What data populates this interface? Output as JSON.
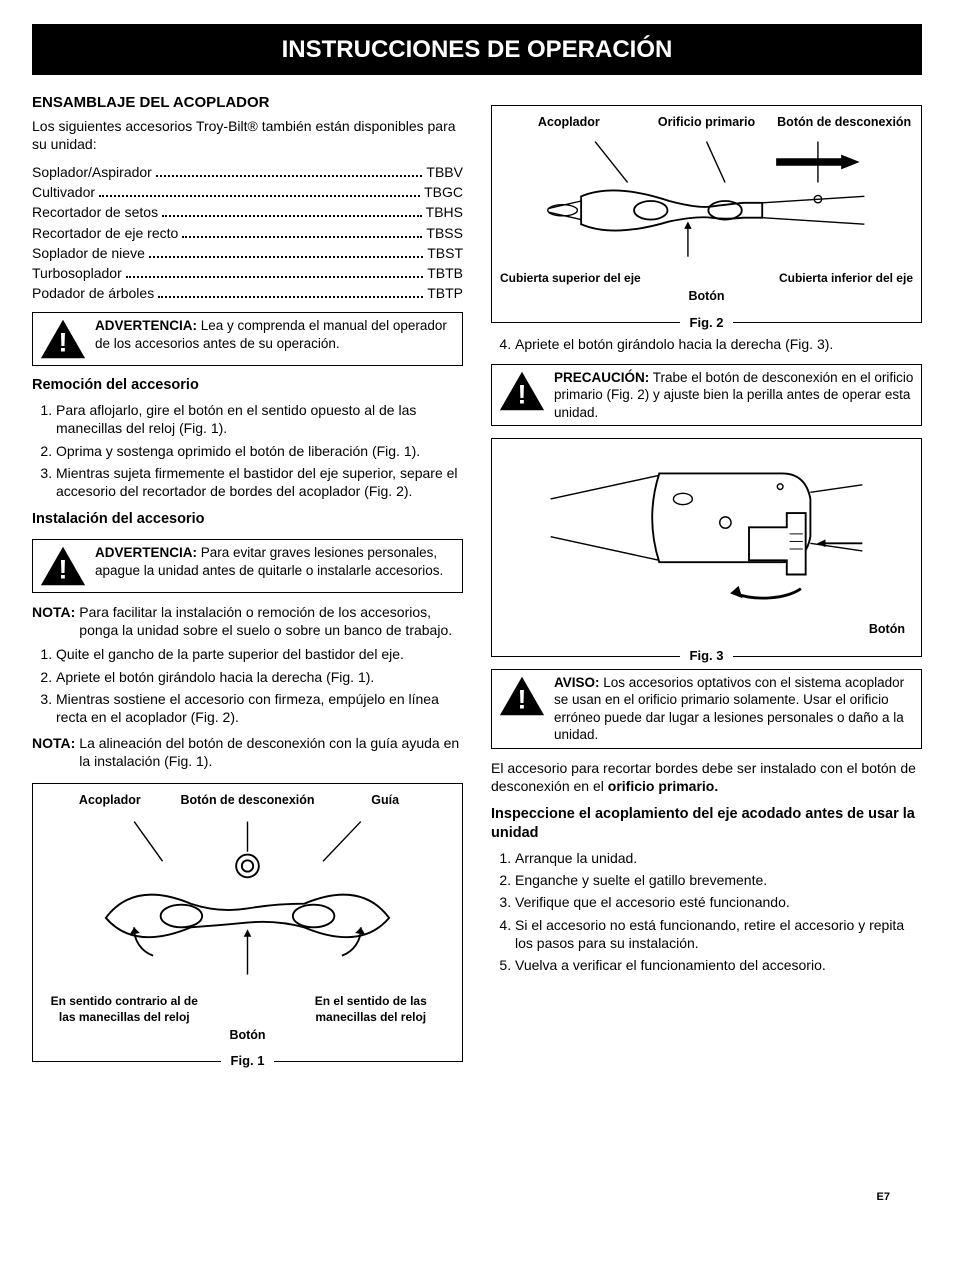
{
  "title": "INSTRUCCIONES DE OPERACIÓN",
  "page_number": "E7",
  "left": {
    "section_title": "ENSAMBLAJE DEL ACOPLADOR",
    "intro": "Los siguientes accesorios Troy-Bilt® también están disponibles para su unidad:",
    "accessories": [
      {
        "name": "Soplador/Aspirador",
        "code": "TBBV"
      },
      {
        "name": "Cultivador",
        "code": "TBGC"
      },
      {
        "name": "Recortador de setos",
        "code": "TBHS"
      },
      {
        "name": "Recortador de eje recto",
        "code": "TBSS"
      },
      {
        "name": "Soplador de nieve",
        "code": "TBST"
      },
      {
        "name": "Turbosoplador",
        "code": "TBTB"
      },
      {
        "name": "Podador de árboles",
        "code": "TBTP"
      }
    ],
    "warn1": {
      "lead": "ADVERTENCIA:",
      "text": " Lea y comprenda el manual del operador de los accesorios antes de su operación."
    },
    "remocion_title": "Remoción del accesorio",
    "remocion_steps": [
      "Para aflojarlo, gire el botón en el sentido opuesto al de las manecillas del reloj (Fig. 1).",
      "Oprima y sostenga oprimido el botón de liberación (Fig. 1).",
      "Mientras sujeta firmemente el bastidor del eje superior, separe el accesorio del recortador de bordes del acoplador (Fig. 2)."
    ],
    "instal_title": "Instalación del accesorio",
    "warn2": {
      "lead": "ADVERTENCIA:",
      "text": " Para evitar graves lesiones personales, apague la unidad antes de quitarle o instalarle accesorios."
    },
    "nota1": {
      "lead": "NOTA:",
      "text": " Para facilitar la instalación o remoción de los accesorios, ponga la unidad sobre el suelo o sobre un banco de trabajo."
    },
    "instal_steps": [
      "Quite el gancho de la parte superior del bastidor del eje.",
      "Apriete el botón girándolo hacia la derecha (Fig. 1).",
      "Mientras sostiene el accesorio con firmeza, empújelo en línea recta en el acoplador (Fig. 2)."
    ],
    "nota2": {
      "lead": "NOTA:",
      "text": " La alineación del botón de desconexión con la guía ayuda en la instalación (Fig. 1)."
    },
    "fig1": {
      "caption": "Fig. 1",
      "top_labels": [
        "Acoplador",
        "Botón de desconexión",
        "Guía"
      ],
      "bottom_left": "En sentido contrario al de las manecillas del reloj",
      "bottom_right": "En el sentido de las manecillas del reloj",
      "boton": "Botón"
    }
  },
  "right": {
    "fig2": {
      "caption": "Fig. 2",
      "top_labels": [
        "Acoplador",
        "Orificio primario",
        "Botón de desconexión"
      ],
      "left_label": "Cubierta superior del eje",
      "right_label": "Cubierta inferior del eje",
      "boton": "Botón"
    },
    "step4": "Apriete el botón girándolo hacia la derecha (Fig. 3).",
    "precaucion": {
      "lead": "PRECAUCIÓN:",
      "text": " Trabe el botón de desconexión en el orificio primario (Fig. 2) y ajuste bien la perilla antes de operar esta unidad."
    },
    "fig3": {
      "caption": "Fig. 3",
      "boton": "Botón"
    },
    "aviso": {
      "lead": "AVISO:",
      "text": " Los accesorios optativos con el sistema acoplador se usan en el orificio primario solamente. Usar el orificio erróneo puede dar lugar a lesiones personales o daño a la unidad."
    },
    "para_orificio_a": "El accesorio para recortar bordes debe ser instalado con el botón de desconexión en el ",
    "para_orificio_b": "orificio primario.",
    "inspeccion_title": "Inspeccione el acoplamiento del eje acodado antes de usar la unidad",
    "inspeccion_steps": [
      "Arranque la unidad.",
      "Enganche y suelte el gatillo brevemente.",
      "Verifique que el accesorio esté funcionando.",
      "Si el accesorio no está funcionando, retire el accesorio y repita los pasos para su instalación.",
      "Vuelva a verificar el funcionamiento del accesorio."
    ]
  },
  "colors": {
    "text": "#000000",
    "bg": "#ffffff",
    "title_bg": "#000000",
    "title_fg": "#ffffff",
    "border": "#000000"
  }
}
